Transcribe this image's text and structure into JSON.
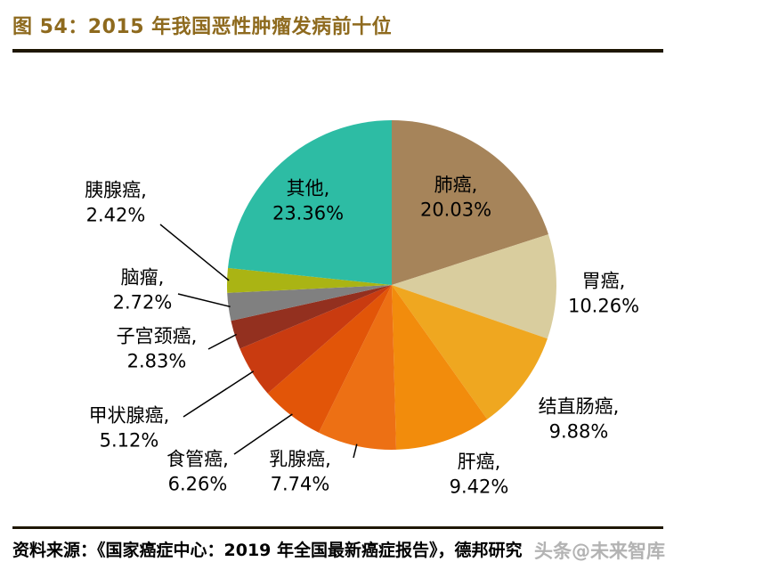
{
  "header": {
    "title": "图 54：2015 年我国恶性肿瘤发病前十位"
  },
  "footer": {
    "source": "资料来源：《国家癌症中心：2019 年全国最新癌症报告》，德邦研究",
    "watermark": "头条@未来智库"
  },
  "colors": {
    "title": "#8E6A1E",
    "rule": "#1E1602",
    "label_text": "#000000",
    "leader_line": "#000000"
  },
  "chart_data": {
    "type": "pie",
    "title": "2015 年我国恶性肿瘤发病前十位",
    "unit": "%",
    "start_angle_deg": -90,
    "direction": "clockwise",
    "legend": "none",
    "label_style": "name and percent, outside labels with leader lines for small slices",
    "slices": [
      {
        "name": "肺癌",
        "value": 20.03,
        "color": "#A6845A"
      },
      {
        "name": "胃癌",
        "value": 10.26,
        "color": "#D9CD9E"
      },
      {
        "name": "结直肠癌",
        "value": 9.88,
        "color": "#EFA720"
      },
      {
        "name": "肝癌",
        "value": 9.42,
        "color": "#F28C0C"
      },
      {
        "name": "乳腺癌",
        "value": 7.74,
        "color": "#ED7014"
      },
      {
        "name": "食管癌",
        "value": 6.26,
        "color": "#E25508"
      },
      {
        "name": "甲状腺癌",
        "value": 5.12,
        "color": "#C93B10"
      },
      {
        "name": "子宫颈癌",
        "value": 2.83,
        "color": "#93301F"
      },
      {
        "name": "脑瘤",
        "value": 2.72,
        "color": "#808080"
      },
      {
        "name": "胰腺癌",
        "value": 2.42,
        "color": "#AAB414"
      },
      {
        "name": "其他",
        "value": 23.36,
        "color": "#2DBCA4"
      }
    ]
  }
}
